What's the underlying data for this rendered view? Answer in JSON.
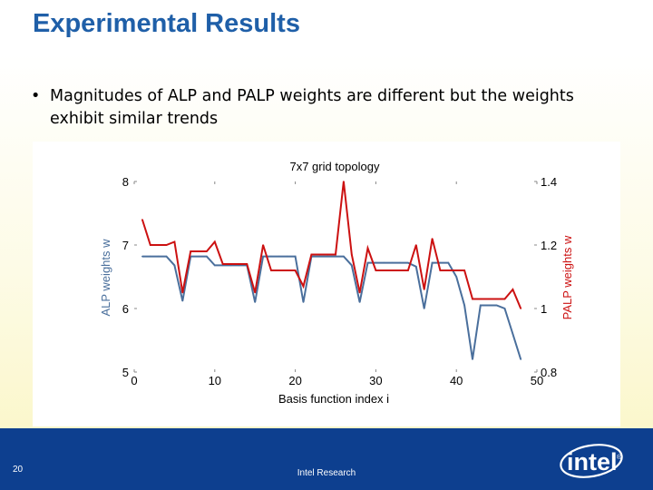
{
  "slide": {
    "title": "Experimental Results",
    "bullet": "Magnitudes of ALP and PALP weights are different but the weights exhibit similar trends",
    "bullet_marker": "•",
    "page_number": "20",
    "footer": "Intel Research",
    "logo_text": "intel",
    "logo_registered": "®",
    "colors": {
      "title": "#1f5fa8",
      "footer": "#0d3f8f",
      "alp": "#4a6f9c",
      "palp": "#cc1111"
    }
  },
  "chart_data": {
    "type": "line",
    "title": "7x7 grid topology",
    "xlabel": "Basis function index i",
    "ylabel_left": "ALP weights w",
    "ylabel_right": "PALP weights w",
    "xlim": [
      0,
      50
    ],
    "ylim_left": [
      5,
      8
    ],
    "ylim_right": [
      0.8,
      1.4
    ],
    "xticks": [
      "0",
      "10",
      "20",
      "30",
      "40",
      "50"
    ],
    "yticks_left": [
      "5",
      "6",
      "7",
      "8"
    ],
    "yticks_right": [
      "0.8",
      "1",
      "1.2",
      "1.4"
    ],
    "grid": false,
    "series": [
      {
        "name": "ALP weights w",
        "axis": "left",
        "color": "#4a6f9c",
        "x": [
          1,
          2,
          3,
          4,
          5,
          6,
          7,
          8,
          9,
          10,
          11,
          12,
          13,
          14,
          15,
          16,
          17,
          18,
          19,
          20,
          21,
          22,
          23,
          24,
          25,
          26,
          27,
          28,
          29,
          30,
          31,
          32,
          33,
          34,
          35,
          36,
          37,
          38,
          39,
          40,
          41,
          42,
          43,
          44,
          45,
          46,
          47,
          48
        ],
        "values": [
          6.82,
          6.82,
          6.82,
          6.82,
          6.68,
          6.12,
          6.82,
          6.82,
          6.82,
          6.68,
          6.68,
          6.68,
          6.68,
          6.68,
          6.1,
          6.82,
          6.82,
          6.82,
          6.82,
          6.82,
          6.1,
          6.82,
          6.82,
          6.82,
          6.82,
          6.82,
          6.68,
          6.1,
          6.72,
          6.72,
          6.72,
          6.72,
          6.72,
          6.72,
          6.66,
          6.0,
          6.72,
          6.72,
          6.72,
          6.5,
          6.05,
          5.2,
          6.05,
          6.05,
          6.05,
          6.0,
          5.6,
          5.2
        ]
      },
      {
        "name": "PALP weights w",
        "axis": "right",
        "color": "#cc1111",
        "x": [
          1,
          2,
          3,
          4,
          5,
          6,
          7,
          8,
          9,
          10,
          11,
          12,
          13,
          14,
          15,
          16,
          17,
          18,
          19,
          20,
          21,
          22,
          23,
          24,
          25,
          26,
          27,
          28,
          29,
          30,
          31,
          32,
          33,
          34,
          35,
          36,
          37,
          38,
          39,
          40,
          41,
          42,
          43,
          44,
          45,
          46,
          47,
          48
        ],
        "values": [
          1.28,
          1.2,
          1.2,
          1.2,
          1.21,
          1.05,
          1.18,
          1.18,
          1.18,
          1.21,
          1.14,
          1.14,
          1.14,
          1.14,
          1.05,
          1.2,
          1.12,
          1.12,
          1.12,
          1.12,
          1.07,
          1.17,
          1.17,
          1.17,
          1.17,
          1.4,
          1.17,
          1.05,
          1.19,
          1.12,
          1.12,
          1.12,
          1.12,
          1.12,
          1.2,
          1.06,
          1.22,
          1.12,
          1.12,
          1.12,
          1.12,
          1.03,
          1.03,
          1.03,
          1.03,
          1.03,
          1.06,
          1.0
        ]
      }
    ]
  }
}
